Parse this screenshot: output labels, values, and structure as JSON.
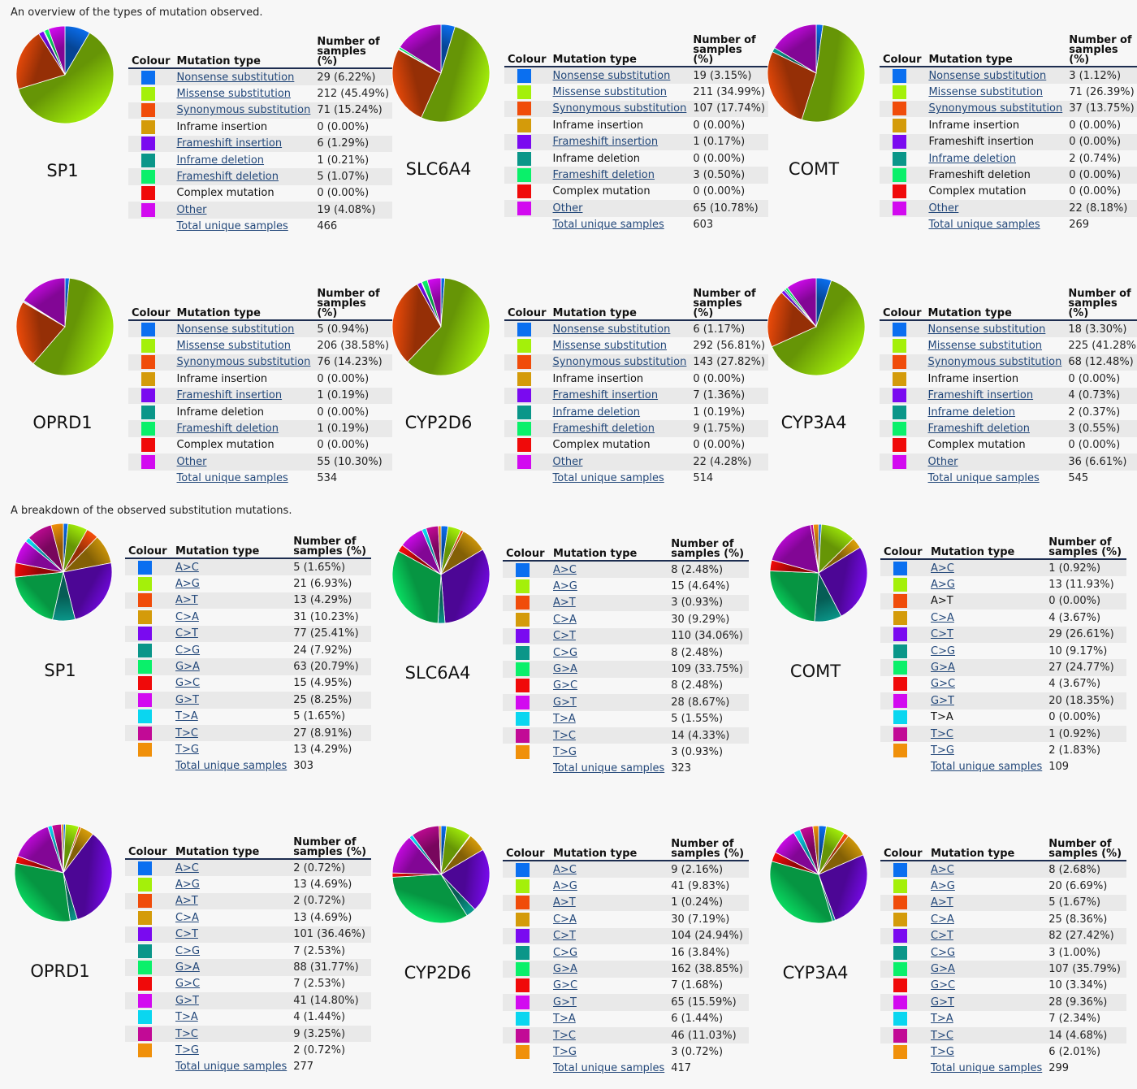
{
  "headings": {
    "types": "An overview of the types of mutation observed.",
    "substitutions": "A breakdown of the observed substitution mutations."
  },
  "type_table": {
    "col_colour": "Colour",
    "col_type": "Mutation type",
    "col_count": "Number of samples (%)",
    "labels": [
      "Nonsense substitution",
      "Missense substitution",
      "Synonymous substitution",
      "Inframe insertion",
      "Frameshift insertion",
      "Inframe deletion",
      "Frameshift deletion",
      "Complex mutation",
      "Other"
    ],
    "colors": [
      "#0a6ff0",
      "#a4f00a",
      "#f04c0a",
      "#d49b0a",
      "#7a0af0",
      "#0a9689",
      "#0af06a",
      "#f00a0a",
      "#d20af0"
    ],
    "total_label": "Total unique samples"
  },
  "sub_table": {
    "col_colour": "Colour",
    "col_type": "Mutation type",
    "col_count": "Number of samples (%)",
    "labels": [
      "A>C",
      "A>G",
      "A>T",
      "C>A",
      "C>T",
      "C>G",
      "G>A",
      "G>C",
      "G>T",
      "T>A",
      "T>C",
      "T>G"
    ],
    "colors": [
      "#0a6ff0",
      "#a4f00a",
      "#f04c0a",
      "#d49b0a",
      "#7a0af0",
      "#0a9689",
      "#0af06a",
      "#f00a0a",
      "#d20af0",
      "#0ad6f0",
      "#c20a96",
      "#f0900a"
    ],
    "total_label": "Total unique samples"
  },
  "chart_data": [
    {
      "type": "pie",
      "group": "types",
      "gene": "SP1",
      "categories": [
        "Nonsense substitution",
        "Missense substitution",
        "Synonymous substitution",
        "Inframe insertion",
        "Frameshift insertion",
        "Inframe deletion",
        "Frameshift deletion",
        "Complex mutation",
        "Other"
      ],
      "values": [
        29,
        212,
        71,
        0,
        6,
        1,
        5,
        0,
        19
      ],
      "labels": [
        "29 (6.22%)",
        "212 (45.49%)",
        "71 (15.24%)",
        "0 (0.00%)",
        "6 (1.29%)",
        "1 (0.21%)",
        "5 (1.07%)",
        "0 (0.00%)",
        "19 (4.08%)"
      ],
      "linked": [
        true,
        true,
        true,
        false,
        true,
        true,
        true,
        false,
        true
      ],
      "total": "466"
    },
    {
      "type": "pie",
      "group": "types",
      "gene": "SLC6A4",
      "categories": [
        "Nonsense substitution",
        "Missense substitution",
        "Synonymous substitution",
        "Inframe insertion",
        "Frameshift insertion",
        "Inframe deletion",
        "Frameshift deletion",
        "Complex mutation",
        "Other"
      ],
      "values": [
        19,
        211,
        107,
        0,
        1,
        0,
        3,
        0,
        65
      ],
      "labels": [
        "19 (3.15%)",
        "211 (34.99%)",
        "107 (17.74%)",
        "0 (0.00%)",
        "1 (0.17%)",
        "0 (0.00%)",
        "3 (0.50%)",
        "0 (0.00%)",
        "65 (10.78%)"
      ],
      "linked": [
        true,
        true,
        true,
        false,
        true,
        false,
        true,
        false,
        true
      ],
      "total": "603"
    },
    {
      "type": "pie",
      "group": "types",
      "gene": "COMT",
      "categories": [
        "Nonsense substitution",
        "Missense substitution",
        "Synonymous substitution",
        "Inframe insertion",
        "Frameshift insertion",
        "Inframe deletion",
        "Frameshift deletion",
        "Complex mutation",
        "Other"
      ],
      "values": [
        3,
        71,
        37,
        0,
        0,
        2,
        0,
        0,
        22
      ],
      "labels": [
        "3 (1.12%)",
        "71 (26.39%)",
        "37 (13.75%)",
        "0 (0.00%)",
        "0 (0.00%)",
        "2 (0.74%)",
        "0 (0.00%)",
        "0 (0.00%)",
        "22 (8.18%)"
      ],
      "linked": [
        true,
        true,
        true,
        false,
        false,
        true,
        false,
        false,
        true
      ],
      "total": "269"
    },
    {
      "type": "pie",
      "group": "types",
      "gene": "OPRD1",
      "categories": [
        "Nonsense substitution",
        "Missense substitution",
        "Synonymous substitution",
        "Inframe insertion",
        "Frameshift insertion",
        "Inframe deletion",
        "Frameshift deletion",
        "Complex mutation",
        "Other"
      ],
      "values": [
        5,
        206,
        76,
        0,
        1,
        0,
        1,
        0,
        55
      ],
      "labels": [
        "5 (0.94%)",
        "206 (38.58%)",
        "76 (14.23%)",
        "0 (0.00%)",
        "1 (0.19%)",
        "0 (0.00%)",
        "1 (0.19%)",
        "0 (0.00%)",
        "55 (10.30%)"
      ],
      "linked": [
        true,
        true,
        true,
        false,
        true,
        false,
        true,
        false,
        true
      ],
      "total": "534"
    },
    {
      "type": "pie",
      "group": "types",
      "gene": "CYP2D6",
      "categories": [
        "Nonsense substitution",
        "Missense substitution",
        "Synonymous substitution",
        "Inframe insertion",
        "Frameshift insertion",
        "Inframe deletion",
        "Frameshift deletion",
        "Complex mutation",
        "Other"
      ],
      "values": [
        6,
        292,
        143,
        0,
        7,
        1,
        9,
        0,
        22
      ],
      "labels": [
        "6 (1.17%)",
        "292 (56.81%)",
        "143 (27.82%)",
        "0 (0.00%)",
        "7 (1.36%)",
        "1 (0.19%)",
        "9 (1.75%)",
        "0 (0.00%)",
        "22 (4.28%)"
      ],
      "linked": [
        true,
        true,
        true,
        false,
        true,
        true,
        true,
        false,
        true
      ],
      "total": "514"
    },
    {
      "type": "pie",
      "group": "types",
      "gene": "CYP3A4",
      "categories": [
        "Nonsense substitution",
        "Missense substitution",
        "Synonymous substitution",
        "Inframe insertion",
        "Frameshift insertion",
        "Inframe deletion",
        "Frameshift deletion",
        "Complex mutation",
        "Other"
      ],
      "values": [
        18,
        225,
        68,
        0,
        4,
        2,
        3,
        0,
        36
      ],
      "labels": [
        "18 (3.30%)",
        "225 (41.28%)",
        "68 (12.48%)",
        "0 (0.00%)",
        "4 (0.73%)",
        "2 (0.37%)",
        "3 (0.55%)",
        "0 (0.00%)",
        "36 (6.61%)"
      ],
      "linked": [
        true,
        true,
        true,
        false,
        true,
        true,
        true,
        false,
        true
      ],
      "total": "545"
    },
    {
      "type": "pie",
      "group": "substitutions",
      "gene": "SP1",
      "categories": [
        "A>C",
        "A>G",
        "A>T",
        "C>A",
        "C>T",
        "C>G",
        "G>A",
        "G>C",
        "G>T",
        "T>A",
        "T>C",
        "T>G"
      ],
      "values": [
        5,
        21,
        13,
        31,
        77,
        24,
        63,
        15,
        25,
        5,
        27,
        13
      ],
      "labels": [
        "5 (1.65%)",
        "21 (6.93%)",
        "13 (4.29%)",
        "31 (10.23%)",
        "77 (25.41%)",
        "24 (7.92%)",
        "63 (20.79%)",
        "15 (4.95%)",
        "25 (8.25%)",
        "5 (1.65%)",
        "27 (8.91%)",
        "13 (4.29%)"
      ],
      "linked": [
        true,
        true,
        true,
        true,
        true,
        true,
        true,
        true,
        true,
        true,
        true,
        true
      ],
      "total": "303"
    },
    {
      "type": "pie",
      "group": "substitutions",
      "gene": "SLC6A4",
      "categories": [
        "A>C",
        "A>G",
        "A>T",
        "C>A",
        "C>T",
        "C>G",
        "G>A",
        "G>C",
        "G>T",
        "T>A",
        "T>C",
        "T>G"
      ],
      "values": [
        8,
        15,
        3,
        30,
        110,
        8,
        109,
        8,
        28,
        5,
        14,
        3
      ],
      "labels": [
        "8 (2.48%)",
        "15 (4.64%)",
        "3 (0.93%)",
        "30 (9.29%)",
        "110 (34.06%)",
        "8 (2.48%)",
        "109 (33.75%)",
        "8 (2.48%)",
        "28 (8.67%)",
        "5 (1.55%)",
        "14 (4.33%)",
        "3 (0.93%)"
      ],
      "linked": [
        true,
        true,
        true,
        true,
        true,
        true,
        true,
        true,
        true,
        true,
        true,
        true
      ],
      "total": "323"
    },
    {
      "type": "pie",
      "group": "substitutions",
      "gene": "COMT",
      "categories": [
        "A>C",
        "A>G",
        "A>T",
        "C>A",
        "C>T",
        "C>G",
        "G>A",
        "G>C",
        "G>T",
        "T>A",
        "T>C",
        "T>G"
      ],
      "values": [
        1,
        13,
        0,
        4,
        29,
        10,
        27,
        4,
        20,
        0,
        1,
        2
      ],
      "labels": [
        "1 (0.92%)",
        "13 (11.93%)",
        "0 (0.00%)",
        "4 (3.67%)",
        "29 (26.61%)",
        "10 (9.17%)",
        "27 (24.77%)",
        "4 (3.67%)",
        "20 (18.35%)",
        "0 (0.00%)",
        "1 (0.92%)",
        "2 (1.83%)"
      ],
      "linked": [
        true,
        true,
        false,
        true,
        true,
        true,
        true,
        true,
        true,
        false,
        true,
        true
      ],
      "total": "109"
    },
    {
      "type": "pie",
      "group": "substitutions",
      "gene": "OPRD1",
      "categories": [
        "A>C",
        "A>G",
        "A>T",
        "C>A",
        "C>T",
        "C>G",
        "G>A",
        "G>C",
        "G>T",
        "T>A",
        "T>C",
        "T>G"
      ],
      "values": [
        2,
        13,
        2,
        13,
        101,
        7,
        88,
        7,
        41,
        4,
        9,
        2
      ],
      "labels": [
        "2 (0.72%)",
        "13 (4.69%)",
        "2 (0.72%)",
        "13 (4.69%)",
        "101 (36.46%)",
        "7 (2.53%)",
        "88 (31.77%)",
        "7 (2.53%)",
        "41 (14.80%)",
        "4 (1.44%)",
        "9 (3.25%)",
        "2 (0.72%)"
      ],
      "linked": [
        true,
        true,
        true,
        true,
        true,
        true,
        true,
        true,
        true,
        true,
        true,
        true
      ],
      "total": "277"
    },
    {
      "type": "pie",
      "group": "substitutions",
      "gene": "CYP2D6",
      "categories": [
        "A>C",
        "A>G",
        "A>T",
        "C>A",
        "C>T",
        "C>G",
        "G>A",
        "G>C",
        "G>T",
        "T>A",
        "T>C",
        "T>G"
      ],
      "values": [
        9,
        41,
        1,
        30,
        104,
        16,
        162,
        7,
        65,
        6,
        46,
        3
      ],
      "labels": [
        "9 (2.16%)",
        "41 (9.83%)",
        "1 (0.24%)",
        "30 (7.19%)",
        "104 (24.94%)",
        "16 (3.84%)",
        "162 (38.85%)",
        "7 (1.68%)",
        "65 (15.59%)",
        "6 (1.44%)",
        "46 (11.03%)",
        "3 (0.72%)"
      ],
      "linked": [
        true,
        true,
        true,
        true,
        true,
        true,
        true,
        true,
        true,
        true,
        true,
        true
      ],
      "total": "417"
    },
    {
      "type": "pie",
      "group": "substitutions",
      "gene": "CYP3A4",
      "categories": [
        "A>C",
        "A>G",
        "A>T",
        "C>A",
        "C>T",
        "C>G",
        "G>A",
        "G>C",
        "G>T",
        "T>A",
        "T>C",
        "T>G"
      ],
      "values": [
        8,
        20,
        5,
        25,
        82,
        3,
        107,
        10,
        28,
        7,
        14,
        6
      ],
      "labels": [
        "8 (2.68%)",
        "20 (6.69%)",
        "5 (1.67%)",
        "25 (8.36%)",
        "82 (27.42%)",
        "3 (1.00%)",
        "107 (35.79%)",
        "10 (3.34%)",
        "28 (9.36%)",
        "7 (2.34%)",
        "14 (4.68%)",
        "6 (2.01%)"
      ],
      "linked": [
        true,
        true,
        true,
        true,
        true,
        true,
        true,
        true,
        true,
        true,
        true,
        true
      ],
      "total": "299"
    }
  ]
}
